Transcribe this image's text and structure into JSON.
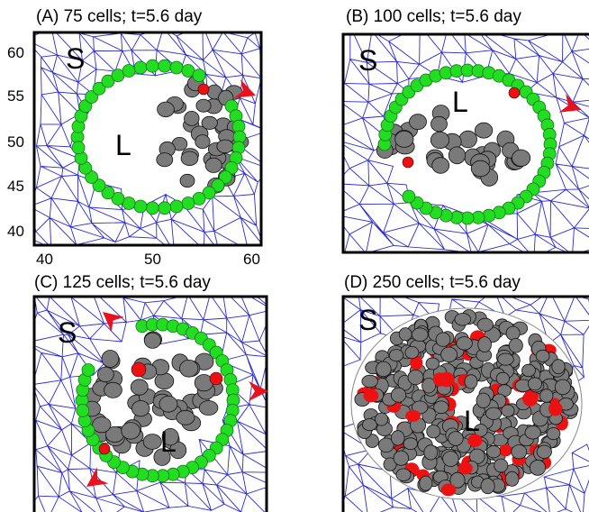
{
  "figure": {
    "panels": [
      {
        "id": "A",
        "title": "(A) 75 cells; t=5.6 day"
      },
      {
        "id": "B",
        "title": "(B) 100 cells; t=5.6 day"
      },
      {
        "id": "C",
        "title": "(C) 125 cells; t=5.6 day"
      },
      {
        "id": "D",
        "title": "(D) 250 cells; t=5.6 day"
      }
    ],
    "y_ticks": [
      "60",
      "55",
      "50",
      "45",
      "40"
    ],
    "x_ticks": [
      "40",
      "50",
      "60"
    ],
    "region_labels": {
      "stroma": "S",
      "lumen": "L"
    },
    "colors": {
      "mesh": "#2a2ad6",
      "boundary_cell": "#22dd22",
      "interior_cell": "#7a7a7a",
      "apoptotic_cell": "#ee1111",
      "arrow": "#e8111e",
      "frame": "#000000"
    },
    "icons": {
      "arrow": "red-arrowhead-icon"
    }
  }
}
